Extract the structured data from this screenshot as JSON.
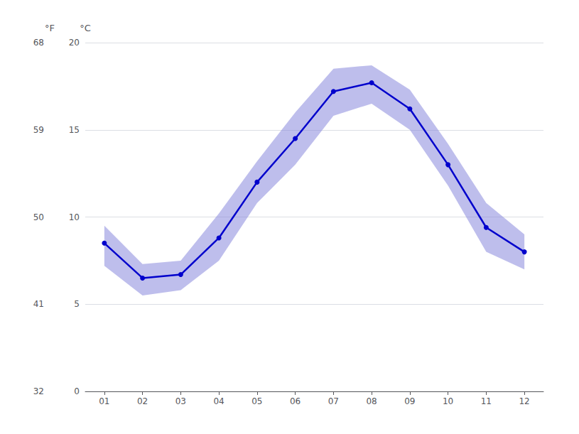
{
  "chart_data": {
    "type": "line",
    "x": [
      1,
      2,
      3,
      4,
      5,
      6,
      7,
      8,
      9,
      10,
      11,
      12
    ],
    "xlim": [
      0.5,
      12.5
    ],
    "xticks": [
      {
        "value": 1,
        "label": "01"
      },
      {
        "value": 2,
        "label": "02"
      },
      {
        "value": 3,
        "label": "03"
      },
      {
        "value": 4,
        "label": "04"
      },
      {
        "value": 5,
        "label": "05"
      },
      {
        "value": 6,
        "label": "06"
      },
      {
        "value": 7,
        "label": "07"
      },
      {
        "value": 8,
        "label": "08"
      },
      {
        "value": 9,
        "label": "09"
      },
      {
        "value": 10,
        "label": "10"
      },
      {
        "value": 11,
        "label": "11"
      },
      {
        "value": 12,
        "label": "12"
      }
    ],
    "ylim": [
      0,
      20
    ],
    "yticks": [
      0,
      5,
      10,
      15,
      20
    ],
    "ylabel": "°C",
    "y2lim": [
      32,
      68
    ],
    "y2ticks": [
      32,
      41,
      50,
      59,
      68
    ],
    "y2label": "°F",
    "grid": true,
    "series": [
      {
        "type": "band",
        "color": "#8888dd",
        "lower": [
          7.2,
          5.5,
          5.8,
          7.5,
          10.8,
          13.0,
          15.8,
          16.5,
          15.0,
          11.8,
          8.0,
          7.0
        ],
        "upper": [
          9.5,
          7.3,
          7.5,
          10.2,
          13.2,
          16.0,
          18.5,
          18.7,
          17.3,
          14.2,
          10.8,
          9.0
        ]
      },
      {
        "type": "line",
        "color": "#0000cc",
        "marker": "circle",
        "values": [
          8.5,
          6.5,
          6.7,
          8.8,
          12.0,
          14.5,
          17.2,
          17.7,
          16.2,
          13.0,
          9.4,
          8.0
        ]
      }
    ]
  }
}
